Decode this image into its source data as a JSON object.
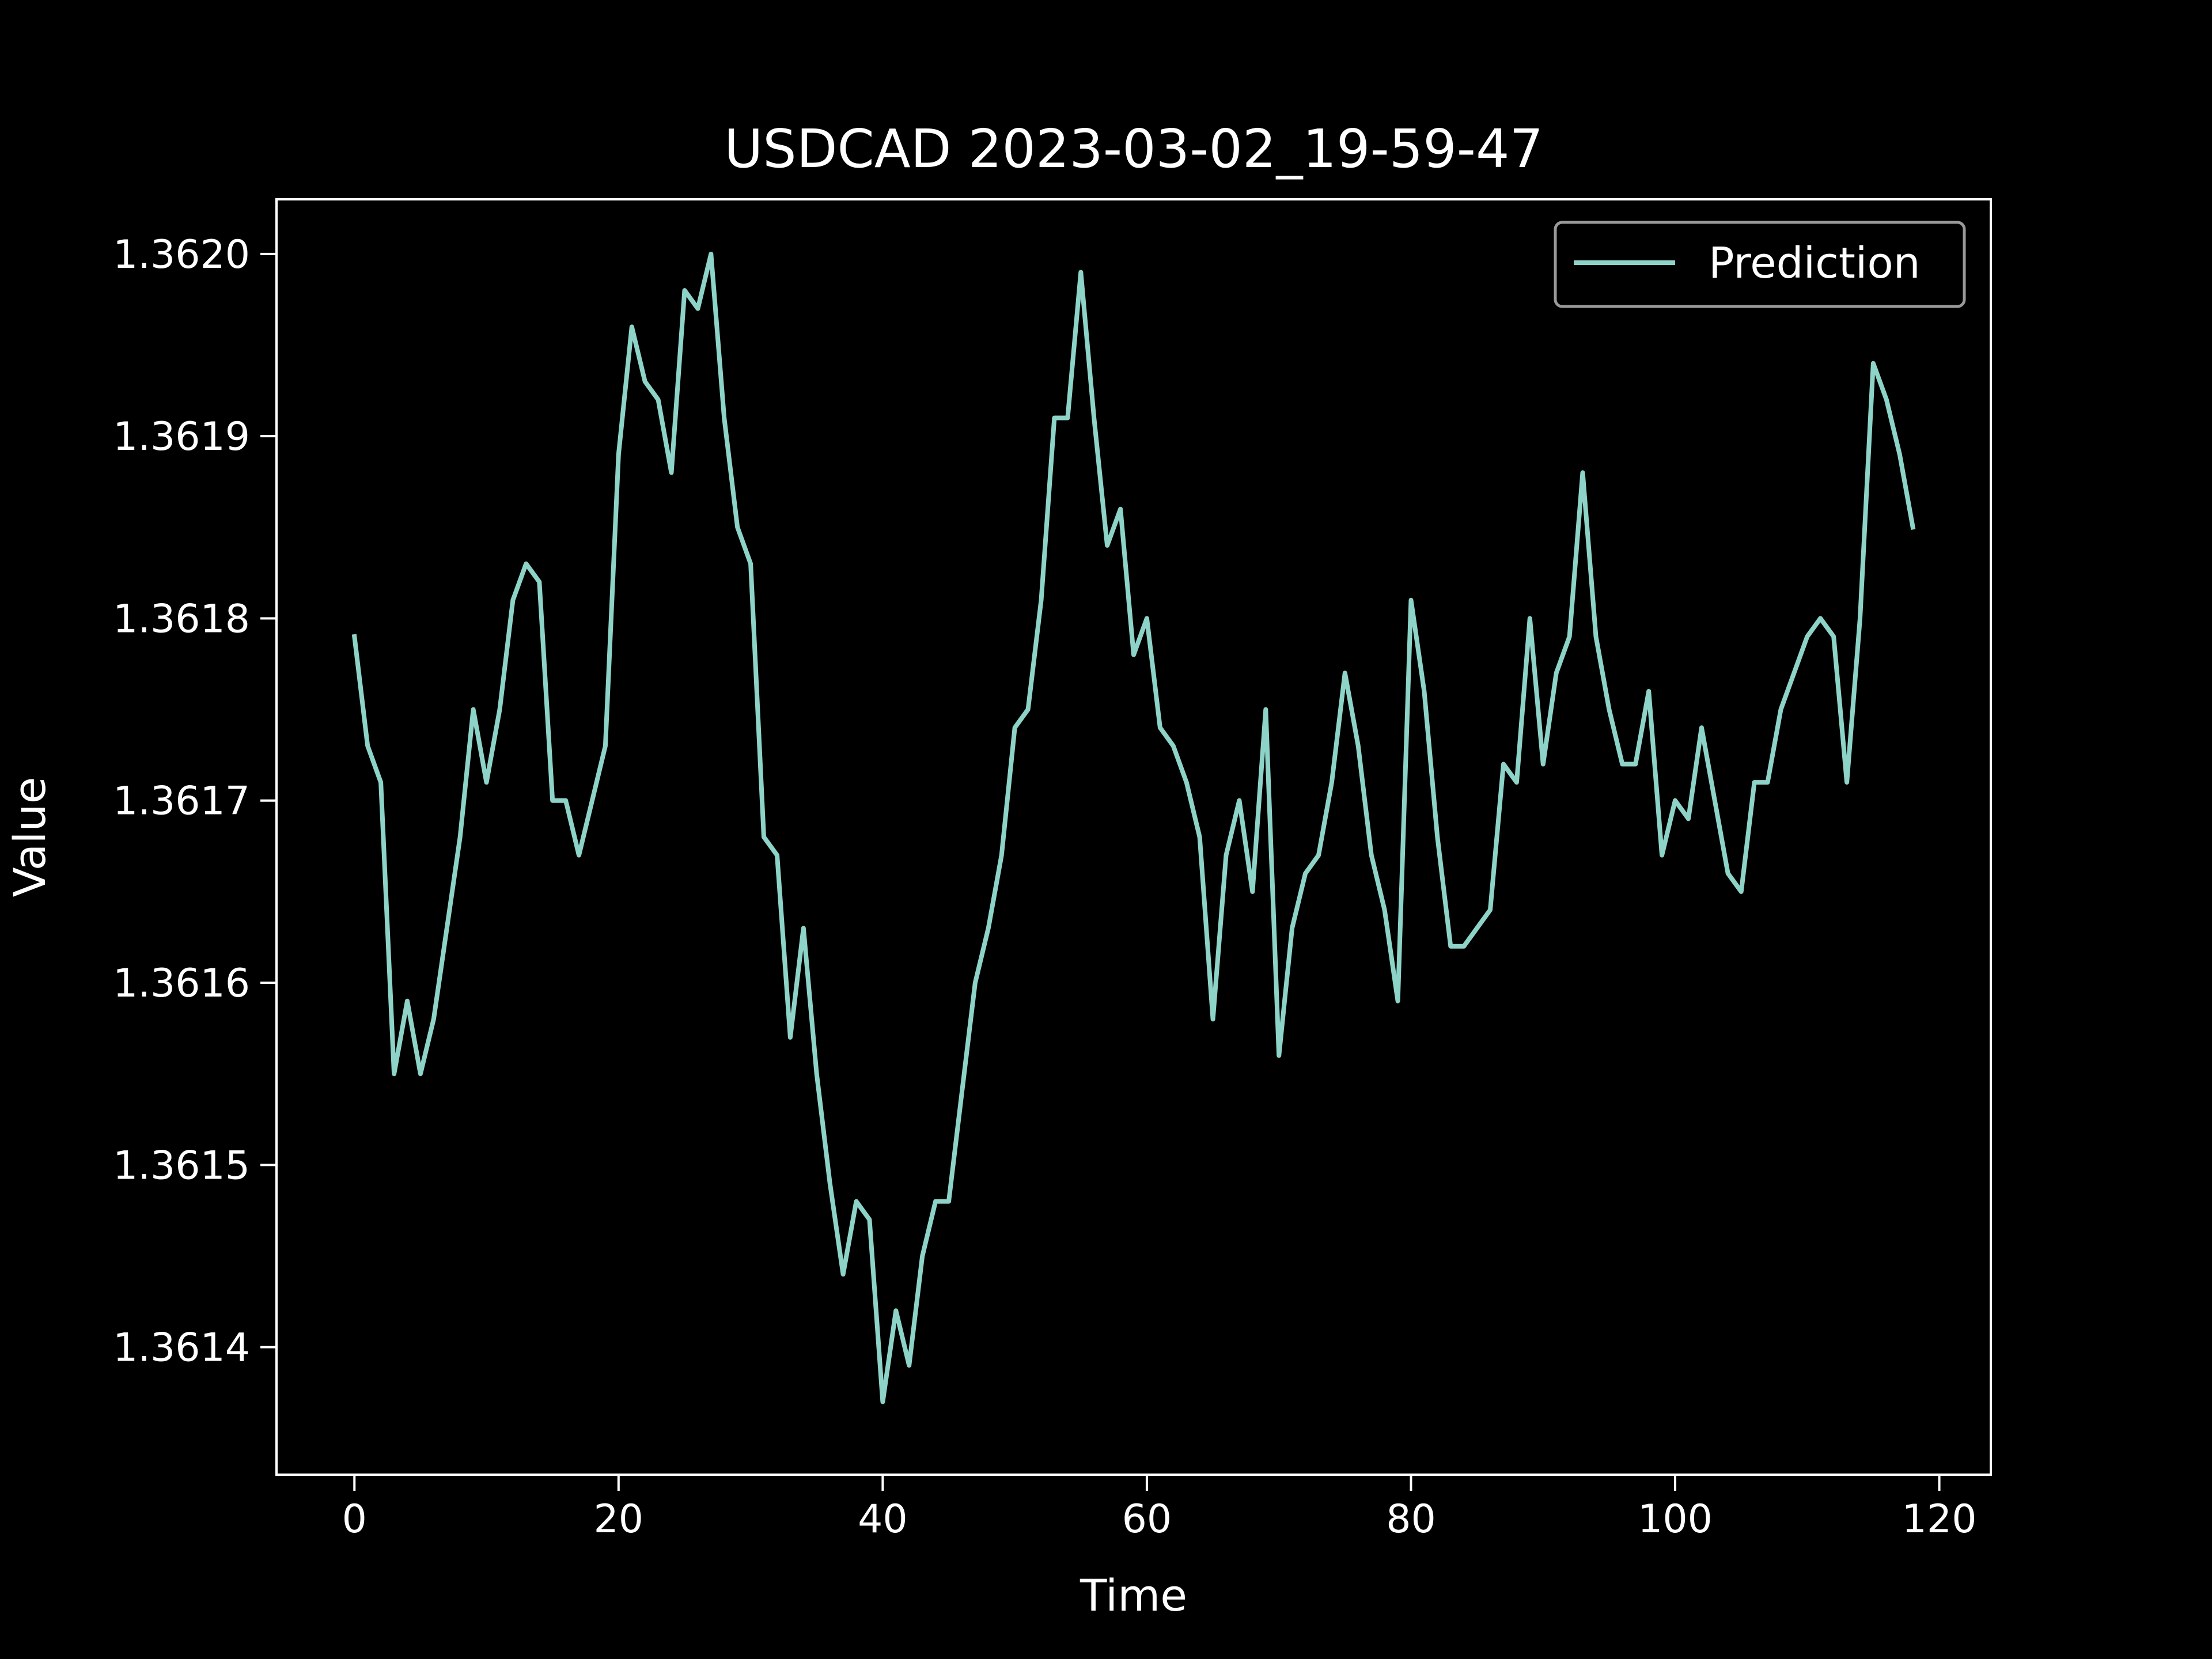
{
  "chart_data": {
    "type": "line",
    "title": "USDCAD 2023-03-02_19-59-47",
    "xlabel": "Time",
    "ylabel": "Value",
    "xlim": [
      -5.9,
      123.9
    ],
    "ylim": [
      1.36133,
      1.36203
    ],
    "xticks": [
      0,
      20,
      40,
      60,
      80,
      100,
      120
    ],
    "xtick_labels": [
      "0",
      "20",
      "40",
      "60",
      "80",
      "100",
      "120"
    ],
    "yticks": [
      1.3614,
      1.3615,
      1.3616,
      1.3617,
      1.3618,
      1.3619,
      1.362
    ],
    "ytick_labels": [
      "1.3614",
      "1.3615",
      "1.3616",
      "1.3617",
      "1.3618",
      "1.3619",
      "1.3620"
    ],
    "legend": {
      "position": "upper right",
      "entries": [
        "Prediction"
      ]
    },
    "grid": false,
    "colors": {
      "background": "#000000",
      "axes": "#ffffff",
      "line": "#8dd3c7",
      "legend_border": "#999999"
    },
    "series": [
      {
        "name": "Prediction",
        "x": [
          0,
          1,
          2,
          3,
          4,
          5,
          6,
          7,
          8,
          9,
          10,
          11,
          12,
          13,
          14,
          15,
          16,
          17,
          18,
          19,
          20,
          21,
          22,
          23,
          24,
          25,
          26,
          27,
          28,
          29,
          30,
          31,
          32,
          33,
          34,
          35,
          36,
          37,
          38,
          39,
          40,
          41,
          42,
          43,
          44,
          45,
          46,
          47,
          48,
          49,
          50,
          51,
          52,
          53,
          54,
          55,
          56,
          57,
          58,
          59,
          60,
          61,
          62,
          63,
          64,
          65,
          66,
          67,
          68,
          69,
          70,
          71,
          72,
          73,
          74,
          75,
          76,
          77,
          78,
          79,
          80,
          81,
          82,
          83,
          84,
          85,
          86,
          87,
          88,
          89,
          90,
          91,
          92,
          93,
          94,
          95,
          96,
          97,
          98,
          99,
          100,
          101,
          102,
          103,
          104,
          105,
          106,
          107,
          108,
          109,
          110,
          111,
          112,
          113,
          114,
          115,
          116,
          117,
          118
        ],
        "values": [
          1.36179,
          1.36173,
          1.36171,
          1.36155,
          1.36159,
          1.36155,
          1.36158,
          1.36163,
          1.36168,
          1.36175,
          1.36171,
          1.36175,
          1.36181,
          1.36183,
          1.36182,
          1.3617,
          1.3617,
          1.36167,
          1.3617,
          1.36173,
          1.36189,
          1.36196,
          1.36193,
          1.36192,
          1.36188,
          1.36198,
          1.36197,
          1.362,
          1.36191,
          1.36185,
          1.36183,
          1.36168,
          1.36167,
          1.36157,
          1.36163,
          1.36155,
          1.36149,
          1.36144,
          1.36148,
          1.36147,
          1.36137,
          1.36142,
          1.36139,
          1.36145,
          1.36148,
          1.36148,
          1.36154,
          1.3616,
          1.36163,
          1.36167,
          1.36174,
          1.36175,
          1.36181,
          1.36191,
          1.36191,
          1.36199,
          1.36191,
          1.36184,
          1.36186,
          1.36178,
          1.3618,
          1.36174,
          1.36173,
          1.36171,
          1.36168,
          1.36158,
          1.36167,
          1.3617,
          1.36165,
          1.36175,
          1.36156,
          1.36163,
          1.36166,
          1.36167,
          1.36171,
          1.36177,
          1.36173,
          1.36167,
          1.36164,
          1.36159,
          1.36181,
          1.36176,
          1.36168,
          1.36162,
          1.36162,
          1.36163,
          1.36164,
          1.36172,
          1.36171,
          1.3618,
          1.36172,
          1.36177,
          1.36179,
          1.36188,
          1.36179,
          1.36175,
          1.36172,
          1.36172,
          1.36176,
          1.36167,
          1.3617,
          1.36169,
          1.36174,
          1.3617,
          1.36166,
          1.36165,
          1.36171,
          1.36171,
          1.36175,
          1.36177,
          1.36179,
          1.3618,
          1.36179,
          1.36171,
          1.3618,
          1.36194,
          1.36192,
          1.36189,
          1.36185
        ]
      }
    ]
  }
}
